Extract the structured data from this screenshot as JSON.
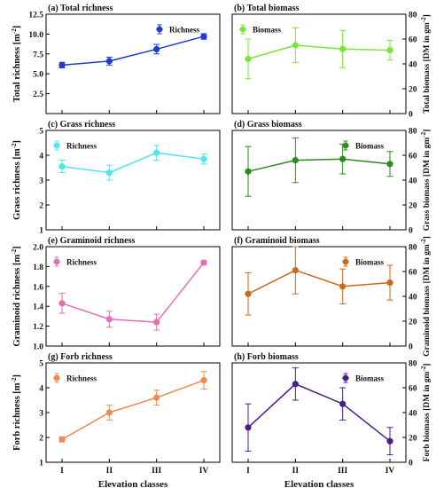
{
  "chart_data": [
    {
      "type": "line",
      "panel_letter": "(a)",
      "title": "Total richness",
      "ylabel_main": "Total richness [m",
      "ylabel_sup": "-2",
      "ylabel_tail": "]",
      "yaxis_side": "left",
      "categories": [
        "I",
        "II",
        "III",
        "IV"
      ],
      "ylim": [
        0,
        12.5
      ],
      "yticks": [
        2.5,
        5.0,
        7.5,
        10.0,
        12.5
      ],
      "ytick_labels": [
        "2.5",
        "5.0",
        "7.5",
        "10.0",
        "12.5"
      ],
      "series": [
        {
          "name": "Richness",
          "values": [
            6.1,
            6.6,
            8.1,
            9.7
          ],
          "errors": [
            0.35,
            0.5,
            0.6,
            0.35
          ]
        }
      ],
      "color": "#1d3bd1",
      "legend": "top-right",
      "show_xticklabels": false,
      "xlabel": ""
    },
    {
      "type": "line",
      "panel_letter": "(b)",
      "title": "Total biomass",
      "ylabel_main": "Total biomass [DM in gm",
      "ylabel_sup": "-2",
      "ylabel_tail": "]",
      "yaxis_side": "right",
      "categories": [
        "I",
        "II",
        "III",
        "IV"
      ],
      "ylim": [
        0,
        80
      ],
      "yticks": [
        0,
        20,
        40,
        60,
        80
      ],
      "ytick_labels": [
        "0",
        "20",
        "40",
        "60",
        "80"
      ],
      "series": [
        {
          "name": "Biomass",
          "values": [
            44,
            55,
            52,
            51
          ],
          "errors": [
            16,
            14,
            15,
            8
          ]
        }
      ],
      "color": "#78e632",
      "legend": "top-left",
      "show_xticklabels": false,
      "xlabel": ""
    },
    {
      "type": "line",
      "panel_letter": "(c)",
      "title": "Grass richness",
      "ylabel_main": "Grass richness [m",
      "ylabel_sup": "-2",
      "ylabel_tail": "]",
      "yaxis_side": "left",
      "categories": [
        "I",
        "II",
        "III",
        "IV"
      ],
      "ylim": [
        1,
        5
      ],
      "yticks": [
        1,
        2,
        3,
        4,
        5
      ],
      "ytick_labels": [
        "1",
        "2",
        "3",
        "4",
        "5"
      ],
      "series": [
        {
          "name": "Richness",
          "values": [
            3.55,
            3.3,
            4.1,
            3.85
          ],
          "errors": [
            0.25,
            0.3,
            0.3,
            0.2
          ]
        }
      ],
      "color": "#4ee6f0",
      "legend": "top-left",
      "show_xticklabels": false,
      "xlabel": ""
    },
    {
      "type": "line",
      "panel_letter": "(d)",
      "title": "Grass biomass",
      "ylabel_main": "Grass biomass [DM in gm",
      "ylabel_sup": "-2",
      "ylabel_tail": "]",
      "yaxis_side": "right",
      "categories": [
        "I",
        "II",
        "III",
        "IV"
      ],
      "ylim": [
        0,
        80
      ],
      "yticks": [
        0,
        20,
        40,
        60,
        80
      ],
      "ytick_labels": [
        "0",
        "20",
        "40",
        "60",
        "80"
      ],
      "series": [
        {
          "name": "Biomass",
          "values": [
            47,
            56,
            57,
            53
          ],
          "errors": [
            20,
            18,
            12,
            10
          ]
        }
      ],
      "color": "#2a8b1e",
      "legend": "top-right",
      "show_xticklabels": false,
      "xlabel": ""
    },
    {
      "type": "line",
      "panel_letter": "(e)",
      "title": "Graminoid richness",
      "ylabel_main": "Graminoid richness [m",
      "ylabel_sup": "-2",
      "ylabel_tail": "]",
      "yaxis_side": "left",
      "categories": [
        "I",
        "II",
        "III",
        "IV"
      ],
      "ylim": [
        1.0,
        2.0
      ],
      "yticks": [
        1.0,
        1.2,
        1.4,
        1.6,
        1.8,
        2.0
      ],
      "ytick_labels": [
        "1.0",
        "1.2",
        "1.4",
        "1.6",
        "1.8",
        "2.0"
      ],
      "series": [
        {
          "name": "Richness",
          "values": [
            1.43,
            1.27,
            1.24,
            1.84
          ],
          "errors": [
            0.1,
            0.08,
            0.08,
            0.02
          ]
        }
      ],
      "color": "#e070b8",
      "legend": "top-left",
      "show_xticklabels": false,
      "xlabel": ""
    },
    {
      "type": "line",
      "panel_letter": "(f)",
      "title": "Graminoid biomass",
      "ylabel_main": "Graminoid biomass [DM in gm",
      "ylabel_sup": "-2",
      "ylabel_tail": "]",
      "yaxis_side": "right",
      "categories": [
        "I",
        "II",
        "III",
        "IV"
      ],
      "ylim": [
        0,
        80
      ],
      "yticks": [
        0,
        20,
        40,
        60,
        80
      ],
      "ytick_labels": [
        "0",
        "20",
        "40",
        "60",
        "80"
      ],
      "series": [
        {
          "name": "Biomass",
          "values": [
            42,
            61,
            48,
            51
          ],
          "errors": [
            17,
            19,
            14,
            14
          ]
        }
      ],
      "color": "#cc6a18",
      "legend": "top-right",
      "show_xticklabels": false,
      "xlabel": ""
    },
    {
      "type": "line",
      "panel_letter": "(g)",
      "title": "Forb richness",
      "ylabel_main": "Forb richness [m",
      "ylabel_sup": "-2",
      "ylabel_tail": "]",
      "yaxis_side": "left",
      "categories": [
        "I",
        "II",
        "III",
        "IV"
      ],
      "ylim": [
        1,
        5
      ],
      "yticks": [
        1,
        2,
        3,
        4,
        5
      ],
      "ytick_labels": [
        "1",
        "2",
        "3",
        "4",
        "5"
      ],
      "series": [
        {
          "name": "Richness",
          "values": [
            1.92,
            3.0,
            3.6,
            4.3
          ],
          "errors": [
            0.1,
            0.3,
            0.3,
            0.35
          ]
        }
      ],
      "color": "#ee8a50",
      "legend": "top-left",
      "show_xticklabels": true,
      "xlabel": "Elevation classes"
    },
    {
      "type": "line",
      "panel_letter": "(h)",
      "title": "Forb biomass",
      "ylabel_main": "Forb biomass [DM in gm",
      "ylabel_sup": "-2",
      "ylabel_tail": "]",
      "yaxis_side": "right",
      "categories": [
        "I",
        "II",
        "III",
        "IV"
      ],
      "ylim": [
        0,
        80
      ],
      "yticks": [
        0,
        20,
        40,
        60,
        80
      ],
      "ytick_labels": [
        "0",
        "20",
        "40",
        "60",
        "80"
      ],
      "series": [
        {
          "name": "Biomass",
          "values": [
            28,
            63,
            47,
            17
          ],
          "errors": [
            19,
            13,
            13,
            11
          ]
        }
      ],
      "color": "#4a1d8c",
      "legend": "top-right",
      "show_xticklabels": true,
      "xlabel": "Elevation classes"
    }
  ]
}
